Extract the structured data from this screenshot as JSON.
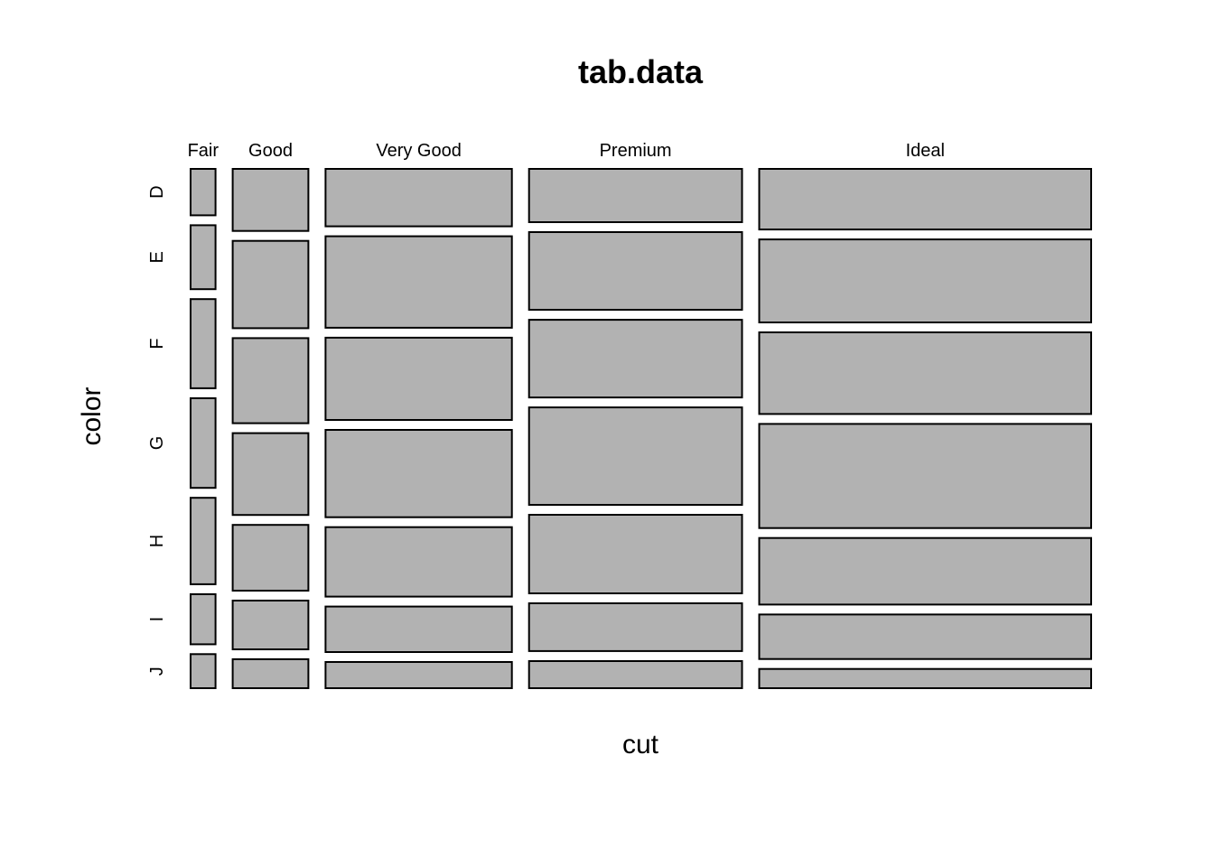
{
  "chart_data": {
    "type": "mosaic",
    "title": "tab.data",
    "xlabel": "cut",
    "ylabel": "color",
    "x_categories": [
      "Fair",
      "Good",
      "Very Good",
      "Premium",
      "Ideal"
    ],
    "y_categories": [
      "D",
      "E",
      "F",
      "G",
      "H",
      "I",
      "J"
    ],
    "cut_proportions": [
      0.03,
      0.091,
      0.224,
      0.256,
      0.399
    ],
    "color_proportions_within_cut": {
      "Fair": [
        0.101,
        0.139,
        0.194,
        0.195,
        0.188,
        0.109,
        0.074
      ],
      "Good": [
        0.135,
        0.19,
        0.185,
        0.178,
        0.143,
        0.106,
        0.063
      ],
      "Very Good": [
        0.125,
        0.199,
        0.179,
        0.19,
        0.151,
        0.099,
        0.057
      ],
      "Premium": [
        0.116,
        0.169,
        0.169,
        0.212,
        0.171,
        0.104,
        0.059
      ],
      "Ideal": [
        0.132,
        0.181,
        0.178,
        0.227,
        0.145,
        0.097,
        0.042
      ]
    },
    "fill_color": "#b2b2b2",
    "stroke_color": "#000000"
  }
}
